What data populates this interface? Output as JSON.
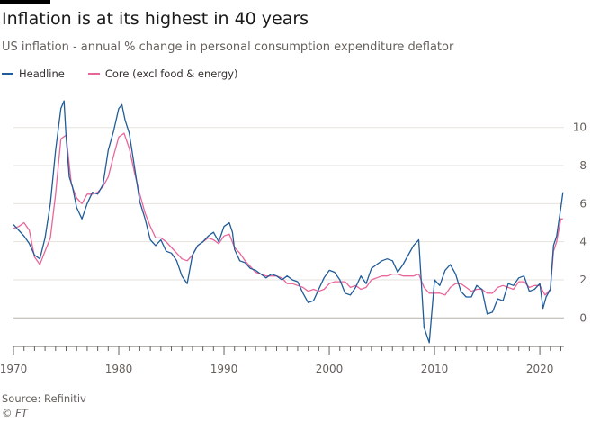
{
  "title": "Inflation is at its highest in 40 years",
  "subtitle": "US inflation - annual % change in personal consumption expenditure deflator",
  "source": "Source: Refinitiv",
  "credit": "© FT",
  "colors": {
    "headline": "#1f5c99",
    "core": "#e8669a",
    "grid": "#e6e2de",
    "axis": "#66605c"
  },
  "chart_data": {
    "type": "line",
    "title": "Inflation is at its highest in 40 years",
    "subtitle": "US inflation - annual % change in personal consumption expenditure deflator",
    "xlabel": "",
    "ylabel": "",
    "xlim": [
      1970,
      2022.3
    ],
    "ylim": [
      -1.5,
      11.5
    ],
    "y_ticks": [
      0,
      2,
      4,
      6,
      8,
      10
    ],
    "y_tick_labels": [
      "0",
      "2",
      "4",
      "6",
      "8",
      "10"
    ],
    "x_ticks": [
      1970,
      1980,
      1990,
      2000,
      2010,
      2020
    ],
    "x_tick_labels": [
      "1970",
      "1980",
      "1990",
      "2000",
      "2010",
      "2020"
    ],
    "y_axis_position": "right",
    "grid": true,
    "legend_position": "top-left",
    "series": [
      {
        "name": "Headline",
        "color": "#1f5c99",
        "x": [
          1970,
          1970.5,
          1971,
          1971.5,
          1972,
          1972.5,
          1973,
          1973.5,
          1974,
          1974.5,
          1974.8,
          1975,
          1975.3,
          1975.6,
          1976,
          1976.5,
          1977,
          1977.5,
          1978,
          1978.5,
          1979,
          1979.5,
          1980,
          1980.3,
          1980.6,
          1981,
          1981.5,
          1982,
          1982.5,
          1983,
          1983.5,
          1984,
          1984.5,
          1985,
          1985.5,
          1986,
          1986.5,
          1987,
          1987.5,
          1988,
          1988.5,
          1989,
          1989.5,
          1990,
          1990.5,
          1990.8,
          1991,
          1991.5,
          1992,
          1992.5,
          1993,
          1993.5,
          1994,
          1994.5,
          1995,
          1995.5,
          1996,
          1996.5,
          1997,
          1997.5,
          1998,
          1998.5,
          1999,
          1999.5,
          2000,
          2000.5,
          2001,
          2001.5,
          2002,
          2002.5,
          2003,
          2003.5,
          2004,
          2004.5,
          2005,
          2005.5,
          2006,
          2006.5,
          2007,
          2007.5,
          2008,
          2008.5,
          2009,
          2009.5,
          2010,
          2010.5,
          2011,
          2011.5,
          2012,
          2012.5,
          2013,
          2013.5,
          2014,
          2014.5,
          2015,
          2015.5,
          2016,
          2016.5,
          2017,
          2017.5,
          2018,
          2018.5,
          2019,
          2019.5,
          2020,
          2020.3,
          2020.6,
          2021,
          2021.3,
          2021.6,
          2022,
          2022.2
        ],
        "values": [
          4.9,
          4.6,
          4.3,
          3.9,
          3.3,
          3.1,
          4.2,
          6.0,
          8.8,
          11.0,
          11.4,
          9.5,
          7.4,
          6.9,
          5.8,
          5.2,
          6.0,
          6.6,
          6.5,
          7.0,
          8.8,
          9.8,
          11.0,
          11.2,
          10.4,
          9.7,
          7.9,
          6.1,
          5.2,
          4.1,
          3.8,
          4.1,
          3.5,
          3.4,
          3.0,
          2.2,
          1.8,
          3.3,
          3.8,
          4.0,
          4.3,
          4.5,
          4.0,
          4.8,
          5.0,
          4.5,
          3.6,
          3.0,
          2.9,
          2.6,
          2.5,
          2.3,
          2.1,
          2.3,
          2.2,
          2.0,
          2.2,
          2.0,
          1.9,
          1.3,
          0.8,
          0.9,
          1.5,
          2.1,
          2.5,
          2.4,
          2.0,
          1.3,
          1.2,
          1.6,
          2.2,
          1.8,
          2.6,
          2.8,
          3.0,
          3.1,
          3.0,
          2.4,
          2.8,
          3.3,
          3.8,
          4.1,
          -0.5,
          -1.3,
          2.0,
          1.7,
          2.5,
          2.8,
          2.3,
          1.4,
          1.1,
          1.1,
          1.7,
          1.5,
          0.2,
          0.3,
          1.0,
          0.9,
          1.8,
          1.7,
          2.1,
          2.2,
          1.4,
          1.5,
          1.8,
          0.5,
          1.1,
          1.5,
          3.8,
          4.3,
          5.8,
          6.6
        ]
      },
      {
        "name": "Core (excl food & energy)",
        "color": "#e8669a",
        "x": [
          1970,
          1970.5,
          1971,
          1971.5,
          1972,
          1972.5,
          1973,
          1973.5,
          1974,
          1974.5,
          1975,
          1975.5,
          1976,
          1976.5,
          1977,
          1977.5,
          1978,
          1978.5,
          1979,
          1979.5,
          1980,
          1980.5,
          1981,
          1981.5,
          1982,
          1982.5,
          1983,
          1983.5,
          1984,
          1984.5,
          1985,
          1985.5,
          1986,
          1986.5,
          1987,
          1987.5,
          1988,
          1988.5,
          1989,
          1989.5,
          1990,
          1990.5,
          1991,
          1991.5,
          1992,
          1992.5,
          1993,
          1993.5,
          1994,
          1994.5,
          1995,
          1995.5,
          1996,
          1996.5,
          1997,
          1997.5,
          1998,
          1998.5,
          1999,
          1999.5,
          2000,
          2000.5,
          2001,
          2001.5,
          2002,
          2002.5,
          2003,
          2003.5,
          2004,
          2004.5,
          2005,
          2005.5,
          2006,
          2006.5,
          2007,
          2007.5,
          2008,
          2008.5,
          2009,
          2009.5,
          2010,
          2010.5,
          2011,
          2011.5,
          2012,
          2012.5,
          2013,
          2013.5,
          2014,
          2014.5,
          2015,
          2015.5,
          2016,
          2016.5,
          2017,
          2017.5,
          2018,
          2018.5,
          2019,
          2019.5,
          2020,
          2020.5,
          2021,
          2021.3,
          2021.6,
          2022,
          2022.2
        ],
        "values": [
          4.7,
          4.8,
          5.0,
          4.6,
          3.2,
          2.8,
          3.5,
          4.2,
          6.5,
          9.4,
          9.6,
          7.0,
          6.3,
          6.0,
          6.5,
          6.5,
          6.6,
          6.9,
          7.4,
          8.5,
          9.5,
          9.7,
          8.9,
          7.6,
          6.5,
          5.5,
          4.8,
          4.2,
          4.2,
          4.0,
          3.7,
          3.4,
          3.1,
          3.0,
          3.3,
          3.8,
          4.0,
          4.2,
          4.1,
          3.9,
          4.3,
          4.4,
          3.7,
          3.4,
          3.0,
          2.7,
          2.4,
          2.3,
          2.2,
          2.2,
          2.2,
          2.1,
          1.8,
          1.8,
          1.7,
          1.6,
          1.4,
          1.5,
          1.4,
          1.5,
          1.8,
          1.9,
          1.9,
          1.9,
          1.6,
          1.7,
          1.5,
          1.6,
          2.0,
          2.1,
          2.2,
          2.2,
          2.3,
          2.3,
          2.2,
          2.2,
          2.2,
          2.3,
          1.6,
          1.3,
          1.3,
          1.3,
          1.2,
          1.6,
          1.8,
          1.8,
          1.6,
          1.4,
          1.5,
          1.5,
          1.3,
          1.3,
          1.6,
          1.7,
          1.6,
          1.5,
          1.9,
          1.9,
          1.6,
          1.7,
          1.7,
          1.2,
          1.5,
          3.5,
          4.0,
          5.2,
          5.2
        ]
      }
    ]
  }
}
